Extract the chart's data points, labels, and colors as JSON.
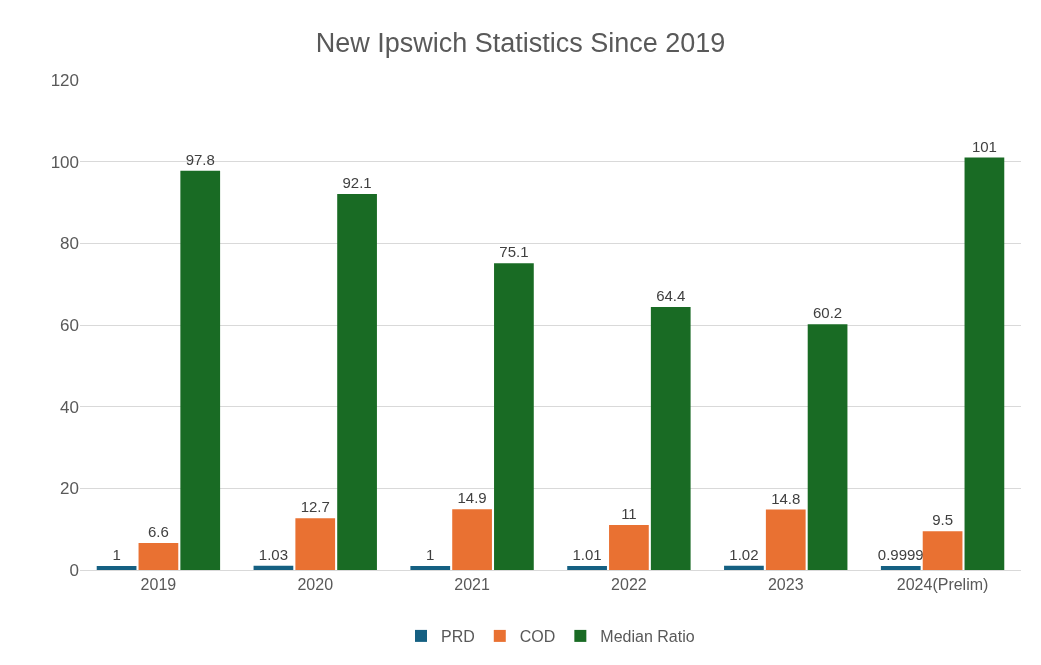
{
  "chart_data": {
    "type": "bar",
    "title": "New Ipswich Statistics Since 2019",
    "categories": [
      "2019",
      "2020",
      "2021",
      "2022",
      "2023",
      "2024(Prelim)"
    ],
    "series": [
      {
        "name": "PRD",
        "color": "#156082",
        "values": [
          1,
          1.03,
          1,
          1.01,
          1.02,
          0.9999
        ]
      },
      {
        "name": "COD",
        "color": "#e97132",
        "values": [
          6.6,
          12.7,
          14.9,
          11,
          14.8,
          9.5
        ]
      },
      {
        "name": "Median Ratio",
        "color": "#196b24",
        "values": [
          97.8,
          92.1,
          75.1,
          64.4,
          60.2,
          101
        ]
      }
    ],
    "ylim": [
      0,
      120
    ],
    "yticks": [
      0,
      20,
      40,
      60,
      80,
      100,
      120
    ],
    "grid": "y",
    "legend": "bottom",
    "data_labels": true
  }
}
